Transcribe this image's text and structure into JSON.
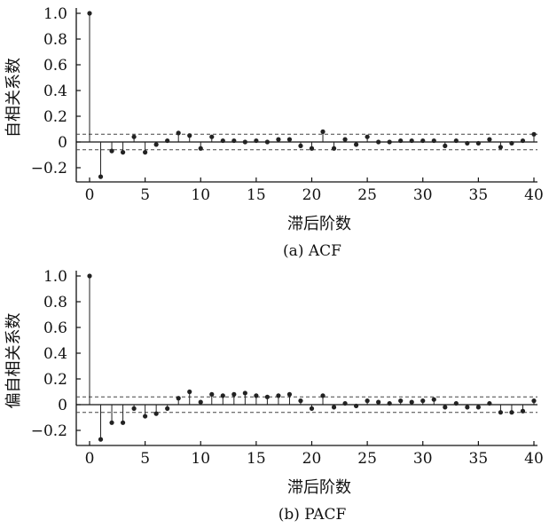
{
  "chart_data": [
    {
      "type": "stem",
      "caption": "(a)  ACF",
      "xlabel": "滞后阶数",
      "ylabel": "自相关系数",
      "xlim": [
        0,
        40
      ],
      "ylim": [
        -0.3,
        1.0
      ],
      "xticks": [
        "0",
        "5",
        "10",
        "15",
        "20",
        "25",
        "30",
        "35",
        "40"
      ],
      "yticks": [
        "1.0",
        "0.8",
        "0.6",
        "0.4",
        "0.2",
        "0",
        "−0.2"
      ],
      "confidence_band": [
        -0.06,
        0.06
      ],
      "lags": [
        0,
        1,
        2,
        3,
        4,
        5,
        6,
        7,
        8,
        9,
        10,
        11,
        12,
        13,
        14,
        15,
        16,
        17,
        18,
        19,
        20,
        21,
        22,
        23,
        24,
        25,
        26,
        27,
        28,
        29,
        30,
        31,
        32,
        33,
        34,
        35,
        36,
        37,
        38,
        39,
        40
      ],
      "values": [
        1.0,
        -0.27,
        -0.07,
        -0.08,
        0.04,
        -0.08,
        -0.02,
        0.01,
        0.07,
        0.05,
        -0.05,
        0.04,
        0.01,
        0.01,
        0.0,
        0.01,
        0.0,
        0.02,
        0.02,
        -0.03,
        -0.05,
        0.08,
        -0.05,
        0.02,
        -0.02,
        0.04,
        0.0,
        0.0,
        0.01,
        0.01,
        0.01,
        0.01,
        -0.03,
        0.01,
        -0.01,
        -0.01,
        0.02,
        -0.04,
        -0.01,
        0.01,
        0.06
      ]
    },
    {
      "type": "stem",
      "caption": "(b)  PACF",
      "xlabel": "滞后阶数",
      "ylabel": "偏自相关系数",
      "xlim": [
        0,
        40
      ],
      "ylim": [
        -0.3,
        1.0
      ],
      "xticks": [
        "0",
        "5",
        "10",
        "15",
        "20",
        "25",
        "30",
        "35",
        "40"
      ],
      "yticks": [
        "1.0",
        "0.8",
        "0.6",
        "0.4",
        "0.2",
        "0",
        "−0.2"
      ],
      "confidence_band": [
        -0.06,
        0.06
      ],
      "lags": [
        0,
        1,
        2,
        3,
        4,
        5,
        6,
        7,
        8,
        9,
        10,
        11,
        12,
        13,
        14,
        15,
        16,
        17,
        18,
        19,
        20,
        21,
        22,
        23,
        24,
        25,
        26,
        27,
        28,
        29,
        30,
        31,
        32,
        33,
        34,
        35,
        36,
        37,
        38,
        39,
        40
      ],
      "values": [
        1.0,
        -0.27,
        -0.14,
        -0.14,
        -0.03,
        -0.09,
        -0.07,
        -0.03,
        0.05,
        0.1,
        0.02,
        0.08,
        0.07,
        0.08,
        0.09,
        0.07,
        0.06,
        0.07,
        0.08,
        0.03,
        -0.03,
        0.07,
        -0.02,
        0.01,
        -0.01,
        0.03,
        0.02,
        0.01,
        0.03,
        0.02,
        0.03,
        0.04,
        -0.02,
        0.01,
        -0.02,
        -0.02,
        0.01,
        -0.06,
        -0.06,
        -0.05,
        0.03
      ]
    }
  ]
}
